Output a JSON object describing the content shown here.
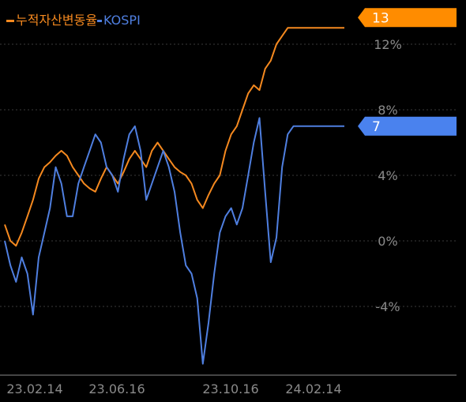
{
  "chart_data": {
    "type": "line",
    "legend": {
      "placement": "top-left",
      "items": [
        {
          "label": "누적자산변동율",
          "color": "#f5891f"
        },
        {
          "label": "KOSPI",
          "color": "#4f7fe0"
        }
      ]
    },
    "x_ticks": [
      "23.02.14",
      "23.06.16",
      "23.10.16",
      "24.02.14"
    ],
    "y_ticks": [
      "12%",
      "8%",
      "4%",
      "0%",
      "-4%"
    ],
    "ylim": [
      -8,
      14
    ],
    "grid": "dotted-horizontal",
    "x_domain": [
      0,
      120
    ],
    "last_values": [
      {
        "series": "누적자산변동율",
        "label": "13",
        "color": "#ff8c00"
      },
      {
        "series": "KOSPI",
        "label": "7",
        "color": "#4a82ee"
      }
    ],
    "series": [
      {
        "name": "누적자산변동율",
        "color": "#f5891f",
        "x": [
          0,
          2,
          4,
          6,
          8,
          10,
          12,
          14,
          16,
          18,
          20,
          22,
          24,
          26,
          28,
          30,
          32,
          34,
          36,
          38,
          40,
          42,
          44,
          46,
          48,
          50,
          52,
          54,
          56,
          58,
          60,
          62,
          64,
          66,
          68,
          70,
          72,
          74,
          76,
          78,
          80,
          82,
          84,
          86,
          88,
          90,
          92,
          94,
          96,
          98,
          100,
          102,
          104,
          106,
          108,
          110,
          112,
          114,
          116,
          118,
          120
        ],
        "values": [
          1,
          0,
          -0.3,
          0.5,
          1.5,
          2.5,
          3.8,
          4.5,
          4.8,
          5.2,
          5.5,
          5.2,
          4.5,
          4.0,
          3.5,
          3.2,
          3.0,
          3.8,
          4.5,
          4.0,
          3.5,
          4.2,
          5.0,
          5.5,
          5.0,
          4.5,
          5.5,
          6.0,
          5.5,
          5.0,
          4.5,
          4.2,
          4.0,
          3.5,
          2.5,
          2.0,
          2.8,
          3.5,
          4.0,
          5.5,
          6.5,
          7.0,
          8.0,
          9.0,
          9.5,
          9.2,
          10.5,
          11.0,
          12.0,
          12.5,
          13.0,
          13.0,
          13.0,
          13.0,
          13.0,
          13.0,
          13.0,
          13.0,
          13.0,
          13.0,
          13.0
        ]
      },
      {
        "name": "KOSPI",
        "color": "#4f7fe0",
        "x": [
          0,
          2,
          4,
          6,
          8,
          10,
          12,
          14,
          16,
          18,
          20,
          22,
          24,
          26,
          28,
          30,
          32,
          34,
          36,
          38,
          40,
          42,
          44,
          46,
          48,
          50,
          52,
          54,
          56,
          58,
          60,
          62,
          64,
          66,
          68,
          70,
          72,
          74,
          76,
          78,
          80,
          82,
          84,
          86,
          88,
          90,
          92,
          94,
          96,
          98,
          100,
          102,
          104,
          106,
          108,
          110,
          112,
          114,
          116,
          118,
          120
        ],
        "values": [
          0,
          -1.5,
          -2.5,
          -1,
          -2,
          -4.5,
          -1,
          0.5,
          2,
          4.5,
          3.5,
          1.5,
          1.5,
          3.5,
          4.5,
          5.5,
          6.5,
          6,
          4.5,
          4,
          3,
          5,
          6.5,
          7,
          5.5,
          2.5,
          3.5,
          4.5,
          5.5,
          4.5,
          3,
          0.5,
          -1.5,
          -2,
          -3.5,
          -7.5,
          -5,
          -2,
          0.5,
          1.5,
          2,
          1,
          2,
          4,
          6,
          7.5,
          3,
          -1.3,
          0.2,
          4.5,
          6.5,
          7,
          7,
          7,
          7,
          7,
          7,
          7,
          7,
          7,
          7
        ]
      }
    ]
  }
}
